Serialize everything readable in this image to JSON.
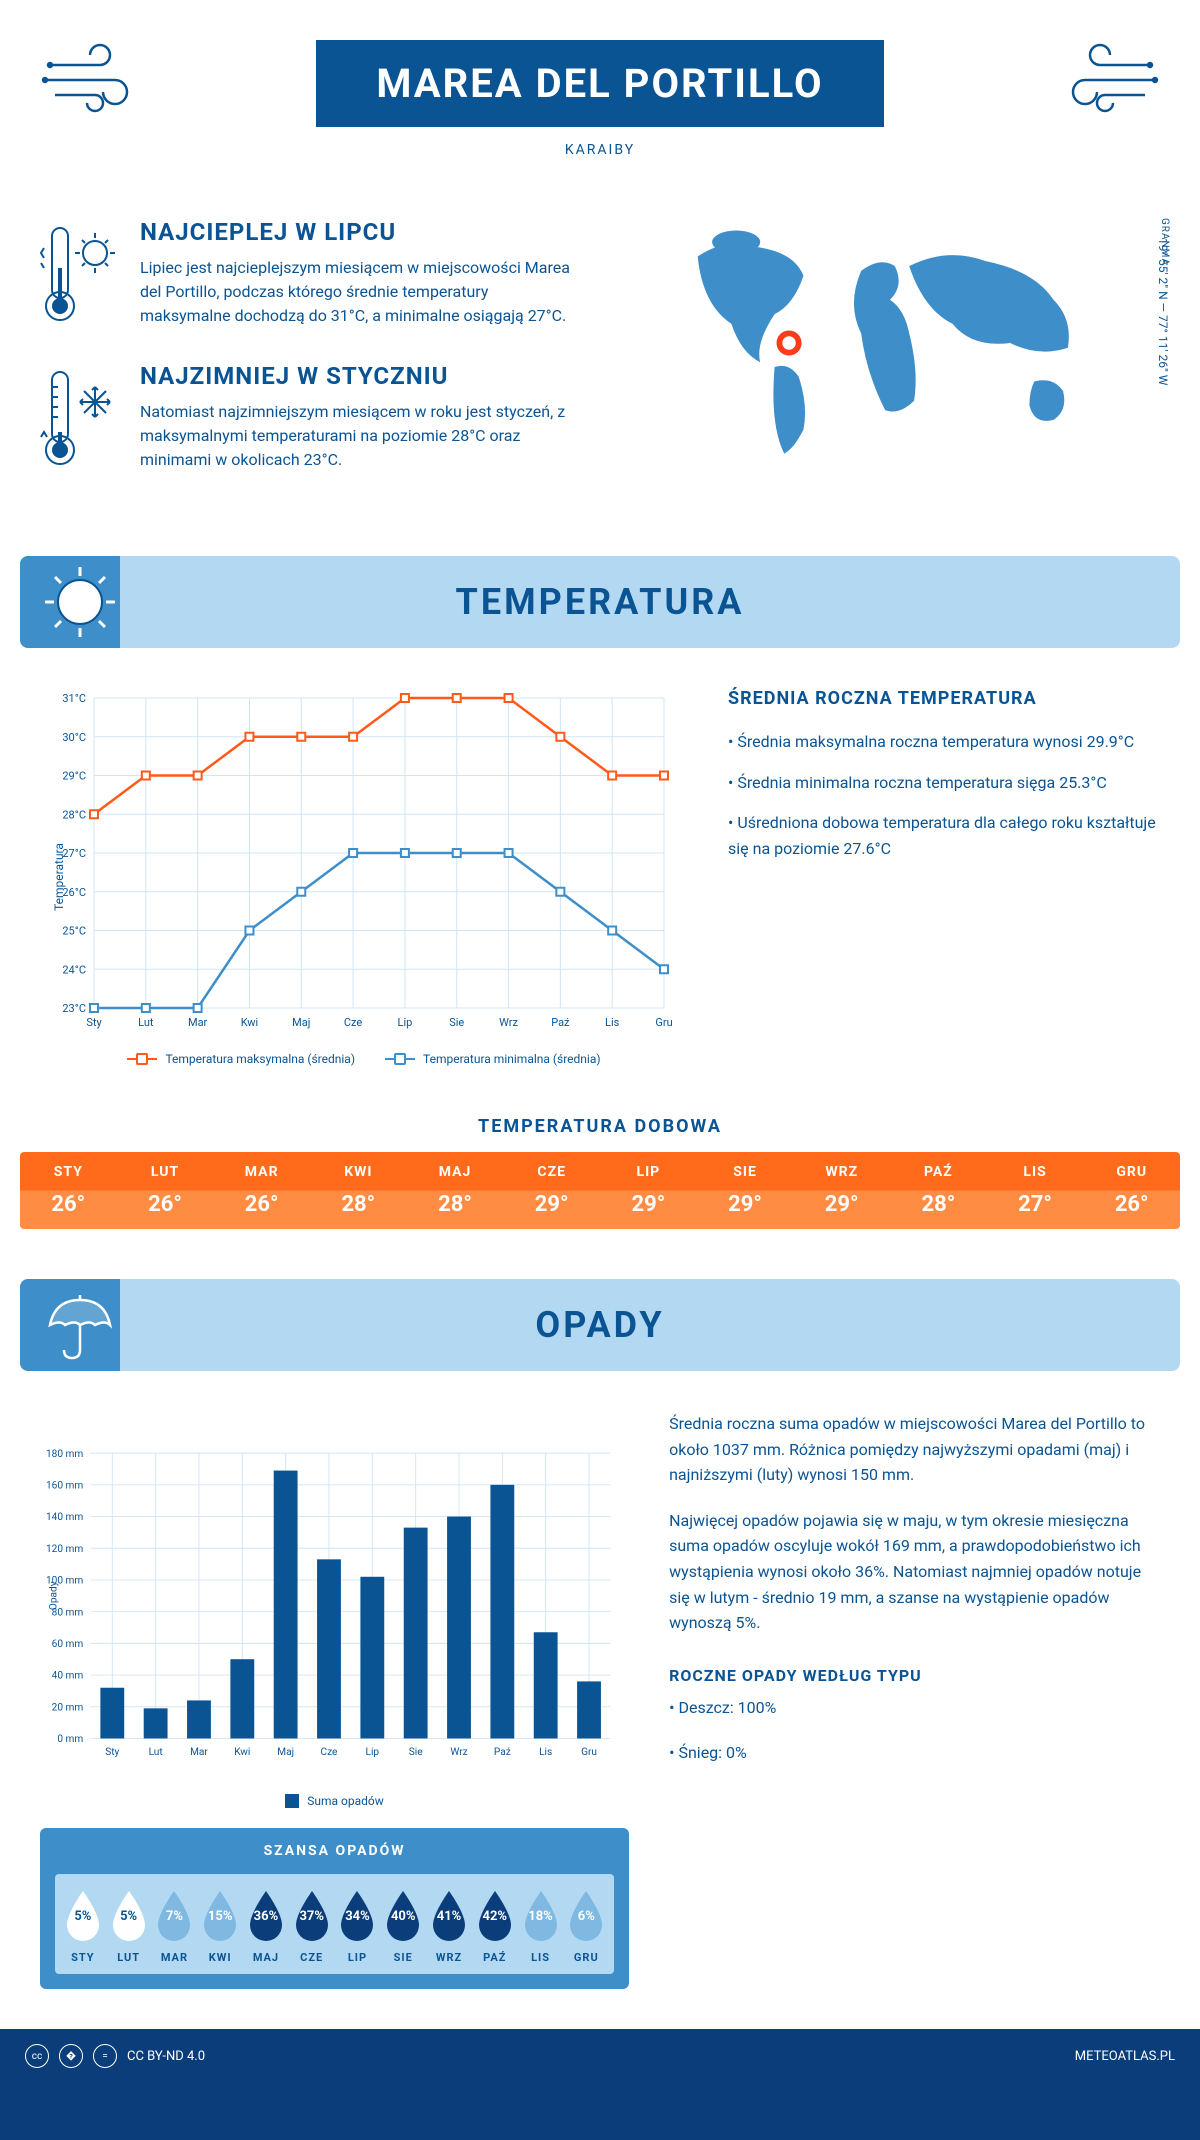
{
  "header": {
    "title": "MAREA DEL PORTILLO",
    "subtitle": "KARAIBY"
  },
  "intro": {
    "warmest": {
      "title": "NAJCIEPLEJ W LIPCU",
      "text": "Lipiec jest najcieplejszym miesiącem w miejscowości Marea del Portillo, podczas którego średnie temperatury maksymalne dochodzą do 31°C, a minimalne osiągają 27°C."
    },
    "coldest": {
      "title": "NAJZIMNIEJ W STYCZNIU",
      "text": "Natomiast najzimniejszym miesiącem w roku jest styczeń, z maksymalnymi temperaturami na poziomie 28°C oraz minimami w okolicach 23°C."
    },
    "region": "GRANMA",
    "coords": "19° 55' 2\" N — 77° 11' 26\" W"
  },
  "temp_section": {
    "title": "TEMPERATURA",
    "chart": {
      "months": [
        "Sty",
        "Lut",
        "Mar",
        "Kwi",
        "Maj",
        "Cze",
        "Lip",
        "Sie",
        "Wrz",
        "Paź",
        "Lis",
        "Gru"
      ],
      "max_values": [
        28,
        29,
        29,
        30,
        30,
        30,
        31,
        31,
        31,
        30,
        29,
        29
      ],
      "min_values": [
        23,
        23,
        23,
        25,
        26,
        27,
        27,
        27,
        27,
        26,
        25,
        24
      ],
      "ylim": [
        23,
        31
      ],
      "ylabel": "Temperatura",
      "max_color": "#ff5a1a",
      "min_color": "#3d8ec9",
      "grid_color": "#d0e5f5",
      "legend_max": "Temperatura maksymalna (średnia)",
      "legend_min": "Temperatura minimalna (średnia)"
    },
    "stats": {
      "title": "ŚREDNIA ROCZNA TEMPERATURA",
      "items": [
        "• Średnia maksymalna roczna temperatura wynosi 29.9°C",
        "• Średnia minimalna roczna temperatura sięga 25.3°C",
        "• Uśredniona dobowa temperatura dla całego roku kształtuje się na poziomie 27.6°C"
      ]
    },
    "daily": {
      "title": "TEMPERATURA DOBOWA",
      "months": [
        "STY",
        "LUT",
        "MAR",
        "KWI",
        "MAJ",
        "CZE",
        "LIP",
        "SIE",
        "WRZ",
        "PAŹ",
        "LIS",
        "GRU"
      ],
      "values": [
        "26°",
        "26°",
        "26°",
        "28°",
        "28°",
        "29°",
        "29°",
        "29°",
        "29°",
        "28°",
        "27°",
        "26°"
      ],
      "bg_top": "#ff6b1a",
      "bg_bottom": "#ff8c42"
    }
  },
  "rain_section": {
    "title": "OPADY",
    "chart": {
      "months": [
        "Sty",
        "Lut",
        "Mar",
        "Kwi",
        "Maj",
        "Cze",
        "Lip",
        "Sie",
        "Wrz",
        "Paź",
        "Lis",
        "Gru"
      ],
      "values": [
        32,
        19,
        24,
        50,
        169,
        113,
        102,
        133,
        140,
        160,
        67,
        36
      ],
      "ylim": [
        0,
        180
      ],
      "ytick_step": 20,
      "ylabel": "Opady",
      "bar_color": "#0a5494",
      "grid_color": "#d0e5f5",
      "legend": "Suma opadów"
    },
    "text": {
      "p1": "Średnia roczna suma opadów w miejscowości Marea del Portillo to około 1037 mm. Różnica pomiędzy najwyższymi opadami (maj) i najniższymi (luty) wynosi 150 mm.",
      "p2": "Najwięcej opadów pojawia się w maju, w tym okresie miesięczna suma opadów oscyluje wokół 169 mm, a prawdopodobieństwo ich wystąpienia wynosi około 36%. Natomiast najmniej opadów notuje się w lutym - średnio 19 mm, a szanse na wystąpienie opadów wynoszą 5%.",
      "type_title": "ROCZNE OPADY WEDŁUG TYPU",
      "type_items": [
        "• Deszcz: 100%",
        "• Śnieg: 0%"
      ]
    },
    "chance": {
      "title": "SZANSA OPADÓW",
      "months": [
        "STY",
        "LUT",
        "MAR",
        "KWI",
        "MAJ",
        "CZE",
        "LIP",
        "SIE",
        "WRZ",
        "PAŹ",
        "LIS",
        "GRU"
      ],
      "percentages": [
        "5%",
        "5%",
        "7%",
        "15%",
        "36%",
        "37%",
        "34%",
        "40%",
        "41%",
        "42%",
        "18%",
        "6%"
      ],
      "values": [
        5,
        5,
        7,
        15,
        36,
        37,
        34,
        40,
        41,
        42,
        18,
        6
      ],
      "min_color": "#ffffff",
      "max_color": "#0a3d7a",
      "mid_color": "#3d8ec9"
    }
  },
  "footer": {
    "license": "CC BY-ND 4.0",
    "site": "METEOATLAS.PL"
  }
}
